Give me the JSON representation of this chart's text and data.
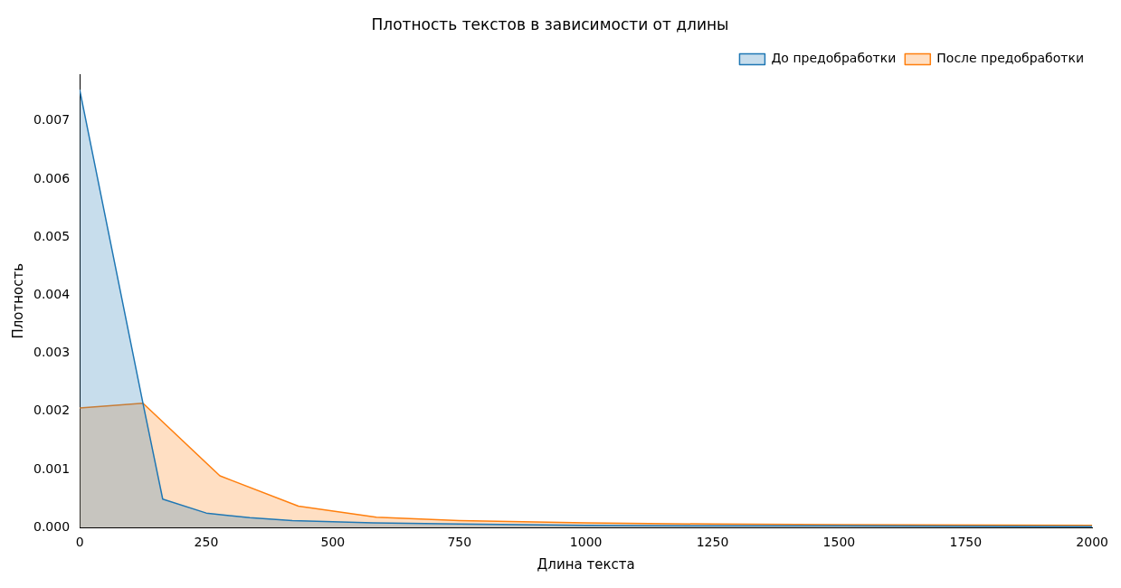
{
  "chart_data": {
    "type": "area",
    "title": "Плотность текстов в зависимости от длины",
    "xlabel": "Длина текста",
    "ylabel": "Плотность",
    "series": [
      {
        "name": "До предобработки",
        "color": "#1f77b4",
        "x": [
          0,
          125,
          164,
          250,
          336,
          420,
          580,
          750,
          1000,
          1250,
          1500,
          2000
        ],
        "values": [
          0.00754,
          0.00214,
          0.00049,
          0.00025,
          0.00017,
          0.00012,
          8e-05,
          6e-05,
          4e-05,
          3e-05,
          3e-05,
          2e-05
        ]
      },
      {
        "name": "После предобработки",
        "color": "#ff7f0e",
        "x": [
          0,
          125,
          277,
          432,
          586,
          750,
          1000,
          1250,
          1500,
          2000
        ],
        "values": [
          0.00206,
          0.00214,
          0.00089,
          0.00037,
          0.00018,
          0.00012,
          8e-05,
          6e-05,
          5e-05,
          4e-05
        ]
      }
    ],
    "xlim": [
      0,
      2000
    ],
    "xticks": [
      0,
      250,
      500,
      750,
      1000,
      1250,
      1500,
      1750,
      2000
    ],
    "ylim": [
      0,
      0.0078
    ],
    "yticks": [
      {
        "value": 0,
        "label": "0.000"
      },
      {
        "value": 0.001,
        "label": "0.001"
      },
      {
        "value": 0.002,
        "label": "0.002"
      },
      {
        "value": 0.003,
        "label": "0.003"
      },
      {
        "value": 0.004,
        "label": "0.004"
      },
      {
        "value": 0.005,
        "label": "0.005"
      },
      {
        "value": 0.006,
        "label": "0.006"
      },
      {
        "value": 0.007,
        "label": "0.007"
      }
    ],
    "grid": false,
    "legend": "top right"
  }
}
